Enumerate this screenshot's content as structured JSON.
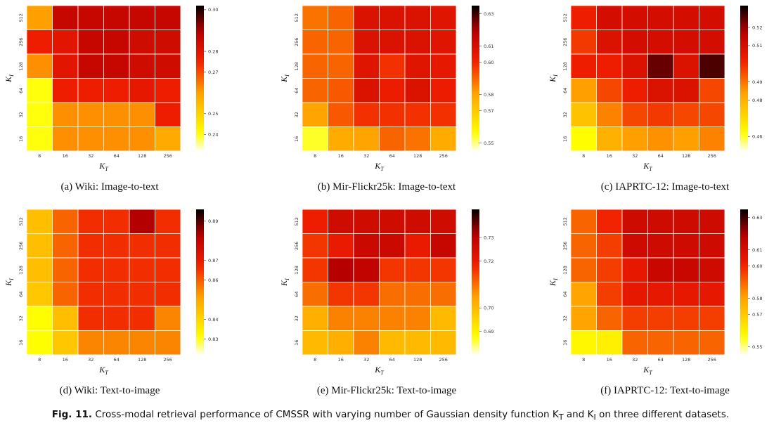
{
  "figure": {
    "number_label": "Fig. 11.",
    "caption_text": "Cross-modal retrieval performance of CMSSR with varying number of Gaussian density function K",
    "caption_sub_t": "T",
    "caption_mid": " and K",
    "caption_sub_i": "I",
    "caption_end": " on three different datasets."
  },
  "chart_data": [
    {
      "type": "heatmap",
      "caption": "(a)  Wiki: Image-to-text",
      "xlabel": "K",
      "xlabel_sub": "T",
      "ylabel": "K",
      "ylabel_sub": "I",
      "x_ticks": [
        "8",
        "16",
        "32",
        "64",
        "128",
        "256"
      ],
      "y_ticks": [
        "512",
        "256",
        "128",
        "64",
        "32",
        "16"
      ],
      "colorbar_ticks": [
        "0.30",
        "0.28",
        "0.27",
        "0.25",
        "0.24"
      ],
      "colorbar_values": [
        0.3,
        0.28,
        0.27,
        0.25,
        0.24
      ],
      "vmin": 0.232,
      "vmax": 0.302,
      "values": [
        [
          0.26,
          0.286,
          0.286,
          0.286,
          0.286,
          0.286
        ],
        [
          0.276,
          0.279,
          0.286,
          0.286,
          0.284,
          0.284
        ],
        [
          0.262,
          0.279,
          0.286,
          0.286,
          0.284,
          0.284
        ],
        [
          0.24,
          0.276,
          0.276,
          0.276,
          0.278,
          0.276
        ],
        [
          0.24,
          0.262,
          0.262,
          0.262,
          0.262,
          0.276
        ],
        [
          0.24,
          0.262,
          0.262,
          0.262,
          0.262,
          0.258
        ]
      ]
    },
    {
      "type": "heatmap",
      "caption": "(b)  Mir-Flickr25k: Image-to-text",
      "xlabel": "K",
      "xlabel_sub": "T",
      "ylabel": "K",
      "ylabel_sub": "I",
      "x_ticks": [
        "8",
        "16",
        "32",
        "64",
        "128",
        "256"
      ],
      "y_ticks": [
        "512",
        "256",
        "128",
        "64",
        "32",
        "16"
      ],
      "colorbar_ticks": [
        "0.63",
        "0.61",
        "0.60",
        "0.58",
        "0.57",
        "0.55"
      ],
      "colorbar_values": [
        0.63,
        0.61,
        0.6,
        0.58,
        0.57,
        0.55
      ],
      "vmin": 0.545,
      "vmax": 0.635,
      "values": [
        [
          0.588,
          0.59,
          0.608,
          0.608,
          0.608,
          0.606
        ],
        [
          0.59,
          0.59,
          0.608,
          0.608,
          0.608,
          0.606
        ],
        [
          0.59,
          0.59,
          0.606,
          0.598,
          0.606,
          0.604
        ],
        [
          0.59,
          0.592,
          0.608,
          0.602,
          0.608,
          0.602
        ],
        [
          0.58,
          0.592,
          0.598,
          0.598,
          0.598,
          0.598
        ],
        [
          0.554,
          0.578,
          0.58,
          0.59,
          0.588,
          0.578
        ]
      ]
    },
    {
      "type": "heatmap",
      "caption": "(c)  IAPRTC-12: Image-to-text",
      "xlabel": "K",
      "xlabel_sub": "T",
      "ylabel": "K",
      "ylabel_sub": "I",
      "x_ticks": [
        "8",
        "16",
        "32",
        "64",
        "128",
        "256"
      ],
      "y_ticks": [
        "512",
        "256",
        "128",
        "64",
        "32",
        "16"
      ],
      "colorbar_ticks": [
        "0.52",
        "0.51",
        "0.49",
        "0.48",
        "0.46"
      ],
      "colorbar_values": [
        0.52,
        0.51,
        0.49,
        0.48,
        0.46
      ],
      "vmin": 0.452,
      "vmax": 0.532,
      "values": [
        [
          0.502,
          0.51,
          0.51,
          0.51,
          0.51,
          0.51
        ],
        [
          0.498,
          0.508,
          0.51,
          0.51,
          0.51,
          0.51
        ],
        [
          0.502,
          0.502,
          0.508,
          0.524,
          0.508,
          0.526
        ],
        [
          0.484,
          0.496,
          0.502,
          0.508,
          0.508,
          0.496
        ],
        [
          0.476,
          0.488,
          0.496,
          0.498,
          0.496,
          0.496
        ],
        [
          0.462,
          0.48,
          0.484,
          0.486,
          0.484,
          0.488
        ]
      ]
    },
    {
      "type": "heatmap",
      "caption": "(d)  Wiki: Text-to-image",
      "xlabel": "K",
      "xlabel_sub": "T",
      "ylabel": "K",
      "ylabel_sub": "I",
      "x_ticks": [
        "8",
        "16",
        "32",
        "64",
        "128",
        "256"
      ],
      "y_ticks": [
        "512",
        "256",
        "128",
        "64",
        "32",
        "16"
      ],
      "colorbar_ticks": [
        "0.89",
        "0.87",
        "0.86",
        "0.84",
        "0.83"
      ],
      "colorbar_values": [
        0.89,
        0.87,
        0.86,
        0.84,
        0.83
      ],
      "vmin": 0.822,
      "vmax": 0.896,
      "values": [
        [
          0.845,
          0.859,
          0.866,
          0.866,
          0.883,
          0.866
        ],
        [
          0.845,
          0.859,
          0.866,
          0.866,
          0.866,
          0.866
        ],
        [
          0.845,
          0.859,
          0.866,
          0.866,
          0.866,
          0.866
        ],
        [
          0.843,
          0.859,
          0.866,
          0.866,
          0.866,
          0.866
        ],
        [
          0.831,
          0.845,
          0.866,
          0.866,
          0.866,
          0.855
        ],
        [
          0.831,
          0.843,
          0.855,
          0.855,
          0.855,
          0.855
        ]
      ]
    },
    {
      "type": "heatmap",
      "caption": "(e)  Mir-Flickr25k: Text-to-image",
      "xlabel": "K",
      "xlabel_sub": "T",
      "ylabel": "K",
      "ylabel_sub": "I",
      "x_ticks": [
        "8",
        "16",
        "32",
        "64",
        "128",
        "256"
      ],
      "y_ticks": [
        "512",
        "256",
        "128",
        "64",
        "32",
        "16"
      ],
      "colorbar_ticks": [
        "0.73",
        "0.72",
        "0.70",
        "0.69"
      ],
      "colorbar_values": [
        0.73,
        0.72,
        0.7,
        0.69
      ],
      "vmin": 0.68,
      "vmax": 0.742,
      "values": [
        [
          0.719,
          0.726,
          0.726,
          0.726,
          0.726,
          0.726
        ],
        [
          0.716,
          0.72,
          0.727,
          0.727,
          0.72,
          0.728
        ],
        [
          0.716,
          0.731,
          0.729,
          0.716,
          0.716,
          0.716
        ],
        [
          0.71,
          0.716,
          0.716,
          0.71,
          0.71,
          0.71
        ],
        [
          0.702,
          0.708,
          0.708,
          0.708,
          0.708,
          0.7
        ],
        [
          0.7,
          0.702,
          0.708,
          0.7,
          0.7,
          0.7
        ]
      ]
    },
    {
      "type": "heatmap",
      "caption": "(f)  IAPRTC-12: Text-to-image",
      "xlabel": "K",
      "xlabel_sub": "T",
      "ylabel": "K",
      "ylabel_sub": "I",
      "x_ticks": [
        "8",
        "16",
        "32",
        "64",
        "128",
        "256"
      ],
      "y_ticks": [
        "512",
        "256",
        "128",
        "64",
        "32",
        "16"
      ],
      "colorbar_ticks": [
        "0.63",
        "0.61",
        "0.60",
        "0.58",
        "0.57",
        "0.55"
      ],
      "colorbar_values": [
        0.63,
        0.61,
        0.6,
        0.58,
        0.57,
        0.55
      ],
      "vmin": 0.545,
      "vmax": 0.635,
      "values": [
        [
          0.59,
          0.6,
          0.612,
          0.612,
          0.612,
          0.612
        ],
        [
          0.59,
          0.596,
          0.612,
          0.612,
          0.612,
          0.612
        ],
        [
          0.59,
          0.596,
          0.604,
          0.614,
          0.614,
          0.612
        ],
        [
          0.58,
          0.596,
          0.604,
          0.604,
          0.604,
          0.604
        ],
        [
          0.58,
          0.59,
          0.596,
          0.596,
          0.596,
          0.596
        ],
        [
          0.558,
          0.56,
          0.59,
          0.59,
          0.59,
          0.59
        ]
      ]
    }
  ]
}
